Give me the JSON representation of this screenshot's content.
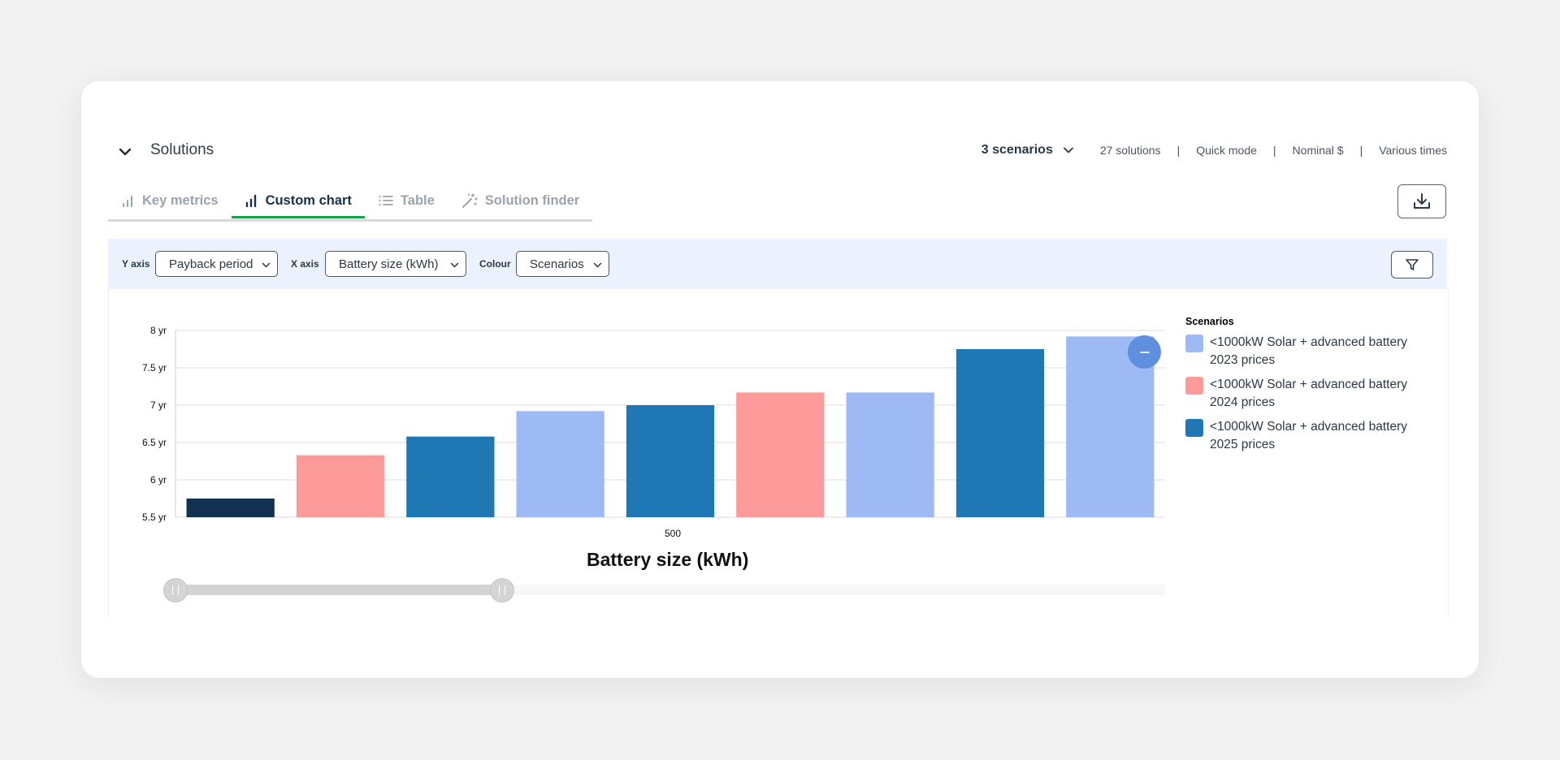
{
  "header": {
    "title": "Solutions",
    "scenarios_label": "3 scenarios",
    "meta": [
      "27 solutions",
      "Quick mode",
      "Nominal $",
      "Various times"
    ]
  },
  "tabs": [
    {
      "label": "Key metrics",
      "icon": "bar-chart-icon",
      "active": false
    },
    {
      "label": "Custom chart",
      "icon": "bar-chart-icon",
      "active": true
    },
    {
      "label": "Table",
      "icon": "list-icon",
      "active": false
    },
    {
      "label": "Solution finder",
      "icon": "magic-wand-icon",
      "active": false
    }
  ],
  "controls": {
    "y_axis_label": "Y axis",
    "y_axis_value": "Payback period",
    "x_axis_label": "X axis",
    "x_axis_value": "Battery size (kWh)",
    "colour_label": "Colour",
    "colour_value": "Scenarios"
  },
  "chart_data": {
    "type": "bar",
    "xlabel": "Battery size (kWh)",
    "ylabel": "",
    "x_tick_label": "500",
    "ylim": [
      5.5,
      8
    ],
    "y_ticks": [
      "5.5 yr",
      "6 yr",
      "6.5 yr",
      "7 yr",
      "7.5 yr",
      "8 yr"
    ],
    "grid": true,
    "legend_title": "Scenarios",
    "legend_position": "right",
    "series": [
      {
        "name": "<1000kW Solar + advanced battery 2023 prices",
        "color": "#9dbaf5"
      },
      {
        "name": "<1000kW Solar + advanced battery 2024 prices",
        "color": "#fd9a9a"
      },
      {
        "name": "<1000kW Solar + advanced battery 2025 prices",
        "color": "#1f77b4"
      }
    ],
    "bars": [
      {
        "value": 5.75,
        "color": "#12304f"
      },
      {
        "value": 6.33,
        "color": "#fd9a9a"
      },
      {
        "value": 6.58,
        "color": "#1f77b4"
      },
      {
        "value": 6.92,
        "color": "#9dbaf5"
      },
      {
        "value": 7.0,
        "color": "#1f77b4"
      },
      {
        "value": 7.17,
        "color": "#fd9a9a"
      },
      {
        "value": 7.17,
        "color": "#9dbaf5"
      },
      {
        "value": 7.75,
        "color": "#1f77b4"
      },
      {
        "value": 7.92,
        "color": "#9dbaf5"
      }
    ],
    "range_slider": {
      "start": 0,
      "end": 0.33
    }
  }
}
